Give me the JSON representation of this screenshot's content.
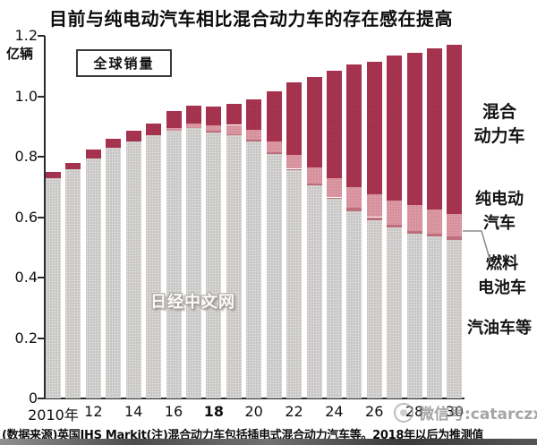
{
  "title": "目前与纯电动汽车相比混合动力车的存在感在提高",
  "legend": {
    "label": "全球销量"
  },
  "y_axis": {
    "unit": "亿辆",
    "ticks": [
      {
        "label": "1.2",
        "value": 1.2
      },
      {
        "label": "1.0",
        "value": 1.0
      },
      {
        "label": "0.8",
        "value": 0.8
      },
      {
        "label": "0.6",
        "value": 0.6
      },
      {
        "label": "0.4",
        "value": 0.4
      },
      {
        "label": "0.2",
        "value": 0.2
      },
      {
        "label": "0",
        "value": 0
      }
    ]
  },
  "x_axis": {
    "labels": [
      {
        "text": "2010年",
        "year": 2010,
        "bold": false
      },
      {
        "text": "12",
        "year": 2012,
        "bold": false
      },
      {
        "text": "14",
        "year": 2014,
        "bold": false
      },
      {
        "text": "16",
        "year": 2016,
        "bold": false
      },
      {
        "text": "18",
        "year": 2018,
        "bold": true
      },
      {
        "text": "20",
        "year": 2020,
        "bold": false
      },
      {
        "text": "22",
        "year": 2022,
        "bold": false
      },
      {
        "text": "24",
        "year": 2024,
        "bold": false
      },
      {
        "text": "26",
        "year": 2026,
        "bold": false
      },
      {
        "text": "28",
        "year": 2028,
        "bold": false
      },
      {
        "text": "30",
        "year": 2030,
        "bold": false
      }
    ]
  },
  "segment_labels": {
    "hybrid": {
      "line1": "混合",
      "line2": "动力车"
    },
    "pure_ev": {
      "line1": "纯电动",
      "line2": "汽车"
    },
    "fuel_cell": {
      "line1": "燃料",
      "line2": "电池车"
    },
    "gasoline": {
      "line1": "汽油车等"
    }
  },
  "colors": {
    "hybrid": "#a93450",
    "pure_ev": "#dd98a3",
    "fuel_cell": "#c4717f",
    "gasoline": "#c9c7c5"
  },
  "chart_data": {
    "type": "bar",
    "stacked": true,
    "title": "全球销量",
    "ylabel": "亿辆",
    "ylim": [
      0,
      1.2
    ],
    "grid": false,
    "note": "2018年以后为预测值",
    "x": [
      2010,
      2011,
      2012,
      2013,
      2014,
      2015,
      2016,
      2017,
      2018,
      2019,
      2020,
      2021,
      2022,
      2023,
      2024,
      2025,
      2026,
      2027,
      2028,
      2029,
      2030
    ],
    "series": [
      {
        "key": "gasoline",
        "name": "汽油车等",
        "color": "#c9c7c5",
        "values": [
          0.73,
          0.76,
          0.795,
          0.83,
          0.85,
          0.87,
          0.885,
          0.895,
          0.88,
          0.87,
          0.85,
          0.81,
          0.755,
          0.705,
          0.66,
          0.62,
          0.59,
          0.565,
          0.545,
          0.535,
          0.525
        ]
      },
      {
        "key": "fuel_cell",
        "name": "燃料电池车",
        "color": "#c4717f",
        "values": [
          0,
          0,
          0,
          0,
          0,
          0,
          0,
          0,
          0.005,
          0.005,
          0.005,
          0.005,
          0.005,
          0.005,
          0.005,
          0.01,
          0.01,
          0.01,
          0.01,
          0.01,
          0.01
        ]
      },
      {
        "key": "pure_ev",
        "name": "纯电动汽车",
        "color": "#dd98a3",
        "values": [
          0,
          0,
          0,
          0,
          0,
          0,
          0.01,
          0.015,
          0.02,
          0.03,
          0.035,
          0.035,
          0.045,
          0.055,
          0.065,
          0.07,
          0.075,
          0.08,
          0.085,
          0.08,
          0.075
        ]
      },
      {
        "key": "hybrid",
        "name": "混合动力车",
        "color": "#a93450",
        "values": [
          0.02,
          0.02,
          0.03,
          0.03,
          0.035,
          0.04,
          0.055,
          0.06,
          0.06,
          0.07,
          0.1,
          0.165,
          0.24,
          0.3,
          0.355,
          0.405,
          0.44,
          0.48,
          0.505,
          0.535,
          0.56
        ]
      }
    ],
    "totals": [
      0.75,
      0.78,
      0.825,
      0.86,
      0.885,
      0.91,
      0.95,
      0.97,
      0.965,
      0.975,
      0.99,
      1.015,
      1.045,
      1.065,
      1.085,
      1.105,
      1.115,
      1.135,
      1.145,
      1.16,
      1.17
    ]
  },
  "source_note": "(数据来源)英国IHS Markit(注)混合动力车包括插电式混合动力汽车等。2018年以后为推测值",
  "watermarks": {
    "center": "日经中文网",
    "bottom_right": "微信号:catarczx"
  }
}
